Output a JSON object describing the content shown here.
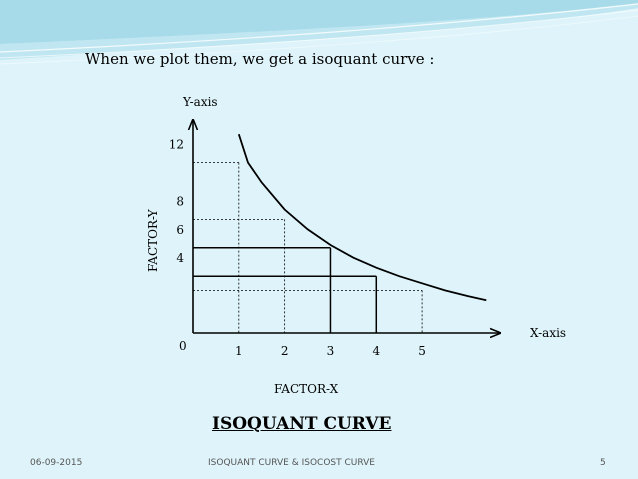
{
  "slide": {
    "intro_text": "When we plot them, we get a isoquant curve :",
    "caption": "ISOQUANT CURVE",
    "footer": {
      "date": "06-09-2015",
      "title": "ISOQUANT CURVE & ISOCOST CURVE",
      "page": "5"
    },
    "colors": {
      "background": "#dff4fa",
      "header_wave": "#a6dcea",
      "line": "#000000"
    }
  },
  "chart_data": {
    "type": "line",
    "title": "",
    "xlabel": "FACTOR-X",
    "ylabel": "FACTOR-Y",
    "x_axis_name": "X-axis",
    "y_axis_name": "Y-axis",
    "origin_label": "0",
    "x_ticks": [
      "1",
      "2",
      "3",
      "4",
      "5"
    ],
    "y_ticks": [
      "4",
      "6",
      "8",
      "12"
    ],
    "xlim": [
      0,
      6.7
    ],
    "ylim": [
      0,
      15
    ],
    "series": [
      {
        "x": [
          1.0,
          1.2,
          1.5,
          2.0,
          2.5,
          3.0,
          3.5,
          4.0,
          4.5,
          5.0,
          5.5,
          6.0,
          6.4
        ],
        "y": [
          14.0,
          12.0,
          10.6,
          8.7,
          7.3,
          6.2,
          5.3,
          4.6,
          4.0,
          3.5,
          3.0,
          2.6,
          2.3
        ]
      }
    ],
    "solid_guides": [
      {
        "x": 3,
        "y": 6
      },
      {
        "x": 4,
        "y": 4
      }
    ],
    "dashed_guides": [
      {
        "x": 1,
        "y": 12
      },
      {
        "x": 2,
        "y": 8
      },
      {
        "x": 5,
        "y": 3
      }
    ],
    "grid": false,
    "legend": "none"
  }
}
